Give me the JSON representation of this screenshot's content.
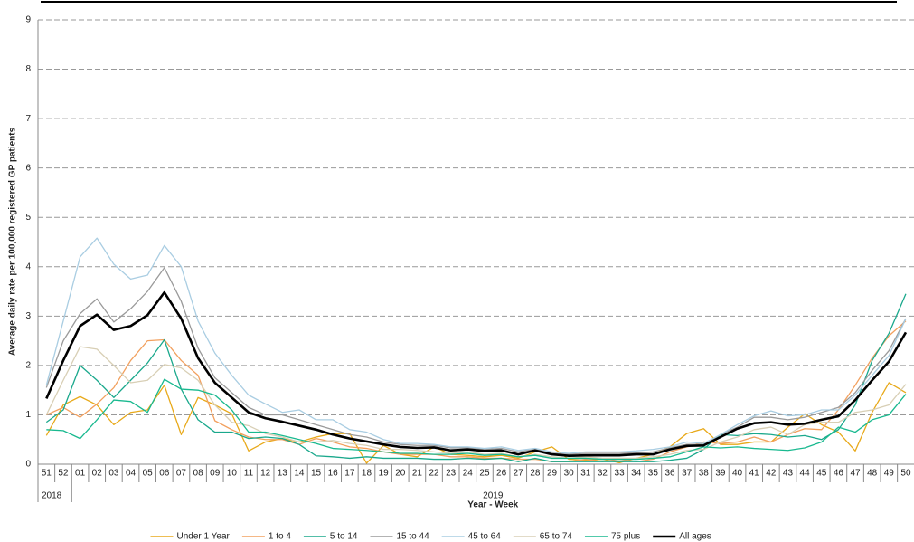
{
  "chart_data": {
    "type": "line",
    "y_label": "Average daily rate per 100,000 registered GP patients",
    "x_label": "Year - Week",
    "categories": [
      "51",
      "52",
      "01",
      "02",
      "03",
      "04",
      "05",
      "06",
      "07",
      "08",
      "09",
      "10",
      "11",
      "12",
      "13",
      "14",
      "15",
      "16",
      "17",
      "18",
      "19",
      "20",
      "21",
      "22",
      "23",
      "24",
      "25",
      "26",
      "27",
      "28",
      "29",
      "30",
      "31",
      "32",
      "33",
      "34",
      "35",
      "36",
      "37",
      "38",
      "39",
      "40",
      "41",
      "42",
      "43",
      "44",
      "45",
      "46",
      "47",
      "48",
      "49",
      "50"
    ],
    "years": [
      "2018",
      "2018",
      "2019",
      "2019",
      "2019",
      "2019",
      "2019",
      "2019",
      "2019",
      "2019",
      "2019",
      "2019",
      "2019",
      "2019",
      "2019",
      "2019",
      "2019",
      "2019",
      "2019",
      "2019",
      "2019",
      "2019",
      "2019",
      "2019",
      "2019",
      "2019",
      "2019",
      "2019",
      "2019",
      "2019",
      "2019",
      "2019",
      "2019",
      "2019",
      "2019",
      "2019",
      "2019",
      "2019",
      "2019",
      "2019",
      "2019",
      "2019",
      "2019",
      "2019",
      "2019",
      "2019",
      "2019",
      "2019",
      "2019",
      "2019",
      "2019",
      "2019"
    ],
    "ylim": [
      0,
      9
    ],
    "yticks": [
      0,
      1,
      2,
      3,
      4,
      5,
      6,
      7,
      8,
      9
    ],
    "grid": true,
    "legend": "bottom",
    "series": [
      {
        "name": "Under 1 Year",
        "color": "#e8a91a",
        "values": [
          0.58,
          1.2,
          1.37,
          1.2,
          0.8,
          1.05,
          1.1,
          1.6,
          0.6,
          1.35,
          1.2,
          1.02,
          0.27,
          0.45,
          0.52,
          0.45,
          0.55,
          0.62,
          0.62,
          0.02,
          0.38,
          0.2,
          0.15,
          0.35,
          0.2,
          0.18,
          0.15,
          0.18,
          0.12,
          0.25,
          0.35,
          0.1,
          0.08,
          0.1,
          0.03,
          0.12,
          0.2,
          0.35,
          0.62,
          0.72,
          0.4,
          0.4,
          0.45,
          0.45,
          0.75,
          1.02,
          0.8,
          0.65,
          0.27,
          1.05,
          1.65,
          1.45
        ]
      },
      {
        "name": "1 to 4",
        "color": "#f2a05e",
        "values": [
          1.0,
          1.15,
          0.95,
          1.22,
          1.55,
          2.1,
          2.5,
          2.52,
          2.1,
          1.8,
          0.88,
          0.7,
          0.55,
          0.5,
          0.5,
          0.4,
          0.52,
          0.45,
          0.35,
          0.32,
          0.25,
          0.2,
          0.2,
          0.2,
          0.15,
          0.15,
          0.12,
          0.12,
          0.1,
          0.1,
          0.05,
          0.05,
          0.1,
          0.05,
          0.1,
          0.05,
          0.1,
          0.25,
          0.35,
          0.45,
          0.42,
          0.45,
          0.55,
          0.45,
          0.6,
          0.72,
          0.7,
          1.1,
          1.6,
          2.15,
          2.6,
          2.9
        ]
      },
      {
        "name": "5 to 14",
        "color": "#1aa88c",
        "values": [
          0.85,
          1.1,
          2.0,
          1.7,
          1.35,
          1.7,
          2.05,
          2.52,
          1.52,
          0.9,
          0.65,
          0.65,
          0.52,
          0.55,
          0.52,
          0.4,
          0.17,
          0.15,
          0.12,
          0.15,
          0.12,
          0.12,
          0.12,
          0.1,
          0.1,
          0.12,
          0.1,
          0.12,
          0.05,
          0.12,
          0.05,
          0.05,
          0.05,
          0.05,
          0.05,
          0.05,
          0.05,
          0.08,
          0.12,
          0.3,
          0.6,
          0.58,
          0.62,
          0.6,
          0.55,
          0.58,
          0.5,
          0.7,
          1.2,
          2.1,
          2.65,
          3.45
        ]
      },
      {
        "name": "15 to 44",
        "color": "#9a9a9a",
        "values": [
          1.55,
          2.5,
          3.05,
          3.35,
          2.88,
          3.15,
          3.5,
          3.98,
          3.3,
          2.35,
          1.75,
          1.45,
          1.15,
          1.0,
          1.0,
          0.9,
          0.8,
          0.7,
          0.6,
          0.55,
          0.45,
          0.4,
          0.38,
          0.38,
          0.33,
          0.33,
          0.3,
          0.32,
          0.25,
          0.3,
          0.22,
          0.2,
          0.22,
          0.22,
          0.22,
          0.23,
          0.25,
          0.33,
          0.4,
          0.4,
          0.6,
          0.75,
          0.95,
          0.95,
          0.9,
          0.95,
          1.05,
          1.15,
          1.45,
          1.9,
          2.3,
          2.95
        ]
      },
      {
        "name": "45 to 64",
        "color": "#a9cde2",
        "values": [
          1.6,
          2.9,
          4.2,
          4.58,
          4.05,
          3.75,
          3.83,
          4.43,
          4.0,
          2.9,
          2.25,
          1.8,
          1.4,
          1.22,
          1.05,
          1.1,
          0.9,
          0.9,
          0.7,
          0.65,
          0.5,
          0.42,
          0.42,
          0.4,
          0.35,
          0.35,
          0.32,
          0.35,
          0.28,
          0.32,
          0.25,
          0.22,
          0.25,
          0.25,
          0.25,
          0.27,
          0.3,
          0.35,
          0.45,
          0.42,
          0.6,
          0.8,
          0.98,
          1.08,
          0.98,
          1.0,
          1.1,
          1.1,
          1.4,
          1.8,
          2.2,
          2.95
        ]
      },
      {
        "name": "65 to 74",
        "color": "#d8cfb5",
        "values": [
          1.0,
          1.7,
          2.38,
          2.33,
          2.0,
          1.65,
          1.7,
          2.02,
          1.95,
          1.7,
          1.2,
          0.85,
          0.78,
          0.62,
          0.55,
          0.45,
          0.45,
          0.48,
          0.42,
          0.38,
          0.3,
          0.3,
          0.28,
          0.25,
          0.22,
          0.25,
          0.2,
          0.22,
          0.15,
          0.2,
          0.15,
          0.12,
          0.15,
          0.12,
          0.12,
          0.12,
          0.15,
          0.2,
          0.28,
          0.3,
          0.45,
          0.55,
          0.7,
          0.75,
          0.6,
          0.8,
          0.85,
          0.85,
          1.05,
          1.1,
          1.2,
          1.62
        ]
      },
      {
        "name": "75 plus",
        "color": "#19b98f",
        "values": [
          0.7,
          0.68,
          0.52,
          0.9,
          1.3,
          1.27,
          1.05,
          1.72,
          1.52,
          1.5,
          1.4,
          1.1,
          0.65,
          0.65,
          0.58,
          0.5,
          0.42,
          0.32,
          0.3,
          0.28,
          0.25,
          0.22,
          0.22,
          0.2,
          0.2,
          0.22,
          0.18,
          0.2,
          0.15,
          0.18,
          0.12,
          0.12,
          0.12,
          0.1,
          0.1,
          0.1,
          0.12,
          0.15,
          0.25,
          0.35,
          0.33,
          0.35,
          0.32,
          0.3,
          0.28,
          0.33,
          0.45,
          0.75,
          0.65,
          0.9,
          1.0,
          1.42
        ]
      },
      {
        "name": "All ages",
        "color": "#000000",
        "values": [
          1.33,
          2.1,
          2.8,
          3.03,
          2.72,
          2.8,
          3.02,
          3.48,
          2.95,
          2.15,
          1.65,
          1.35,
          1.05,
          0.93,
          0.86,
          0.78,
          0.7,
          0.6,
          0.52,
          0.46,
          0.4,
          0.35,
          0.33,
          0.34,
          0.28,
          0.3,
          0.27,
          0.28,
          0.2,
          0.28,
          0.2,
          0.17,
          0.18,
          0.18,
          0.18,
          0.2,
          0.2,
          0.3,
          0.37,
          0.38,
          0.55,
          0.72,
          0.83,
          0.85,
          0.8,
          0.82,
          0.9,
          0.97,
          1.3,
          1.7,
          2.08,
          2.67
        ]
      }
    ]
  }
}
